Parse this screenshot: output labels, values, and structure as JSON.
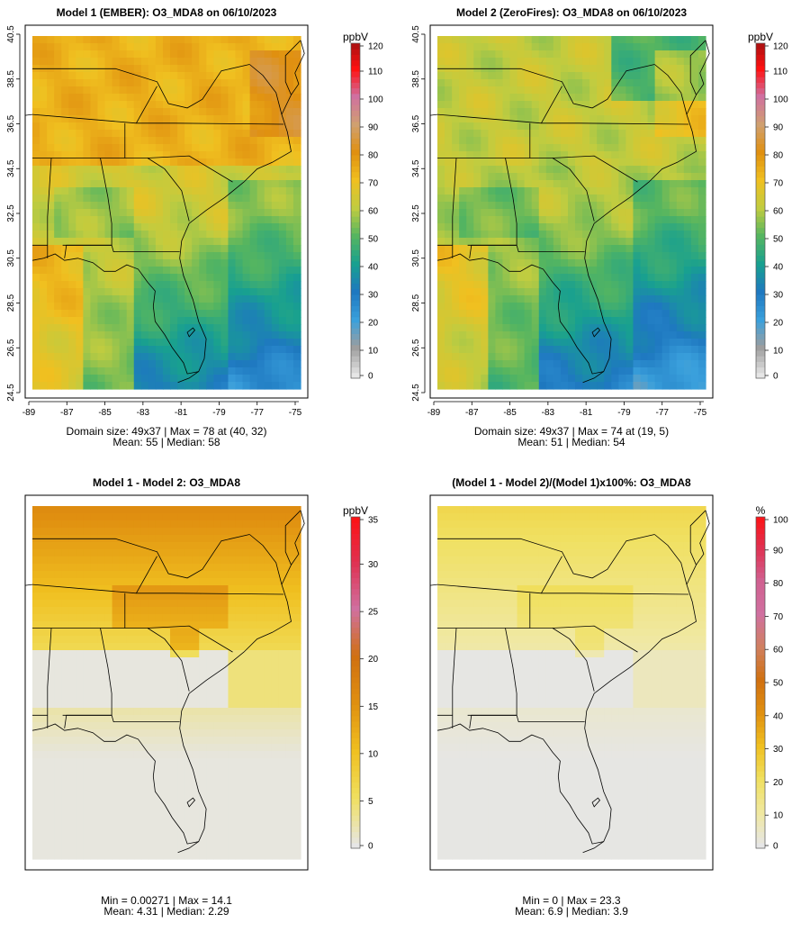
{
  "figure": {
    "panels": [
      {
        "id": "model1",
        "title": "Model 1 (EMBER): O3_MDA8 on 06/10/2023",
        "show_axes": true,
        "x_ticks": [
          "-89",
          "-87",
          "-85",
          "-83",
          "-81",
          "-79",
          "-77",
          "-75"
        ],
        "y_ticks": [
          "24.5",
          "26.5",
          "28.5",
          "30.5",
          "32.5",
          "34.5",
          "36.5",
          "38.5",
          "40.5"
        ],
        "stats_line1": "Domain size: 49x37 | Max = 78 at (40, 32)",
        "stats_line2": "Mean: 55 |  Median: 58",
        "colorbar": {
          "unit": "ppbV",
          "min": 0,
          "max": 120,
          "ticks": [
            "0",
            "10",
            "20",
            "30",
            "40",
            "50",
            "60",
            "70",
            "80",
            "90",
            "100",
            "110",
            "120"
          ],
          "colors": [
            "#e6e6e6",
            "#9e9e9e",
            "#3aa0dc",
            "#1e78c0",
            "#18a090",
            "#55b560",
            "#c0cc40",
            "#f0c020",
            "#e09010",
            "#d0a070",
            "#d070a0",
            "#ff1010",
            "#a01010"
          ]
        }
      },
      {
        "id": "model2",
        "title": "Model 2 (ZeroFires): O3_MDA8 on 06/10/2023",
        "show_axes": true,
        "x_ticks": [
          "-89",
          "-87",
          "-85",
          "-83",
          "-81",
          "-79",
          "-77",
          "-75"
        ],
        "y_ticks": [
          "24.5",
          "26.5",
          "28.5",
          "30.5",
          "32.5",
          "34.5",
          "36.5",
          "38.5",
          "40.5"
        ],
        "stats_line1": "Domain size: 49x37 | Max = 74 at (19, 5)",
        "stats_line2": "Mean: 51 |  Median: 54",
        "colorbar": {
          "unit": "ppbV",
          "min": 0,
          "max": 120,
          "ticks": [
            "0",
            "10",
            "20",
            "30",
            "40",
            "50",
            "60",
            "70",
            "80",
            "90",
            "100",
            "110",
            "120"
          ],
          "colors": [
            "#e6e6e6",
            "#9e9e9e",
            "#3aa0dc",
            "#1e78c0",
            "#18a090",
            "#55b560",
            "#c0cc40",
            "#f0c020",
            "#e09010",
            "#d0a070",
            "#d070a0",
            "#ff1010",
            "#a01010"
          ]
        }
      },
      {
        "id": "diff",
        "title": "Model 1 - Model 2: O3_MDA8",
        "show_axes": false,
        "x_ticks": [],
        "y_ticks": [],
        "stats_line1": "Min = 0.00271 | Max = 14.1",
        "stats_line2": "Mean: 4.31 |  Median: 2.29",
        "colorbar": {
          "unit": "ppbV",
          "min": 0,
          "max": 35,
          "ticks": [
            "0",
            "5",
            "10",
            "15",
            "20",
            "25",
            "30",
            "35"
          ],
          "colors": [
            "#e6e6e6",
            "#f0e060",
            "#f0c020",
            "#e09010",
            "#d07010",
            "#d070a0",
            "#e03050",
            "#ff1010"
          ]
        }
      },
      {
        "id": "pct",
        "title": "(Model 1 - Model 2)/(Model 1)x100%: O3_MDA8",
        "show_axes": false,
        "x_ticks": [],
        "y_ticks": [],
        "stats_line1": "Min = 0 | Max = 23.3",
        "stats_line2": "Mean: 6.9 |  Median: 3.9",
        "colorbar": {
          "unit": "%",
          "min": 0,
          "max": 100,
          "ticks": [
            "0",
            "10",
            "20",
            "30",
            "40",
            "50",
            "60",
            "70",
            "80",
            "90",
            "100"
          ],
          "colors": [
            "#e6e6e6",
            "#f0e8a0",
            "#f0e060",
            "#f0c020",
            "#e09010",
            "#d07010",
            "#d08060",
            "#d070a0",
            "#d06090",
            "#e03050",
            "#ff1010"
          ]
        }
      }
    ]
  }
}
